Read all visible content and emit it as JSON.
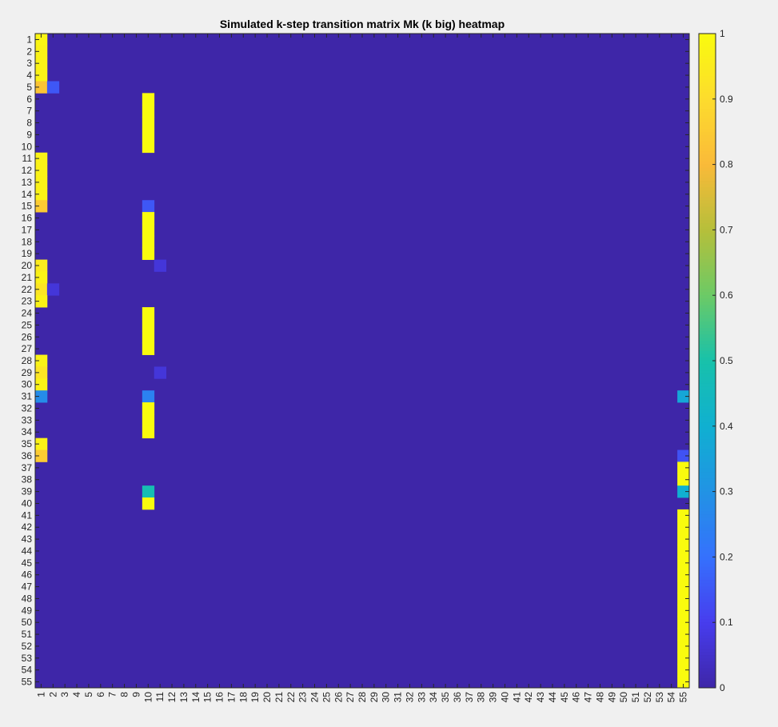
{
  "chart_data": {
    "type": "heatmap",
    "title": "Simulated k-step transition matrix Mk (k big) heatmap",
    "xlabel": "",
    "ylabel": "",
    "rows": 55,
    "cols": 55,
    "x_tick_labels": [
      "1",
      "2",
      "3",
      "4",
      "5",
      "6",
      "7",
      "8",
      "9",
      "10",
      "11",
      "12",
      "13",
      "14",
      "15",
      "16",
      "17",
      "18",
      "19",
      "20",
      "21",
      "22",
      "23",
      "24",
      "25",
      "26",
      "27",
      "28",
      "29",
      "30",
      "31",
      "32",
      "33",
      "34",
      "35",
      "36",
      "37",
      "38",
      "39",
      "40",
      "41",
      "42",
      "43",
      "44",
      "45",
      "46",
      "47",
      "48",
      "49",
      "50",
      "51",
      "52",
      "53",
      "54",
      "55"
    ],
    "y_tick_labels": [
      "1",
      "2",
      "3",
      "4",
      "5",
      "6",
      "7",
      "8",
      "9",
      "10",
      "11",
      "12",
      "13",
      "14",
      "15",
      "16",
      "17",
      "18",
      "19",
      "20",
      "21",
      "22",
      "23",
      "24",
      "25",
      "26",
      "27",
      "28",
      "29",
      "30",
      "31",
      "32",
      "33",
      "34",
      "35",
      "36",
      "37",
      "38",
      "39",
      "40",
      "41",
      "42",
      "43",
      "44",
      "45",
      "46",
      "47",
      "48",
      "49",
      "50",
      "51",
      "52",
      "53",
      "54",
      "55"
    ],
    "colorbar": {
      "min": 0,
      "max": 1,
      "ticks": [
        "0",
        "0.1",
        "0.2",
        "0.3",
        "0.4",
        "0.5",
        "0.6",
        "0.7",
        "0.8",
        "0.9",
        "1"
      ]
    },
    "background_value": 0,
    "nonzero_cells": [
      {
        "row": 1,
        "col": 1,
        "value": 0.98
      },
      {
        "row": 2,
        "col": 1,
        "value": 0.97
      },
      {
        "row": 3,
        "col": 1,
        "value": 0.97
      },
      {
        "row": 4,
        "col": 1,
        "value": 0.97
      },
      {
        "row": 5,
        "col": 1,
        "value": 0.83
      },
      {
        "row": 5,
        "col": 2,
        "value": 0.15
      },
      {
        "row": 6,
        "col": 10,
        "value": 1
      },
      {
        "row": 7,
        "col": 10,
        "value": 1
      },
      {
        "row": 8,
        "col": 10,
        "value": 1
      },
      {
        "row": 9,
        "col": 10,
        "value": 1
      },
      {
        "row": 10,
        "col": 10,
        "value": 1
      },
      {
        "row": 11,
        "col": 1,
        "value": 0.97
      },
      {
        "row": 12,
        "col": 1,
        "value": 0.97
      },
      {
        "row": 13,
        "col": 1,
        "value": 0.97
      },
      {
        "row": 14,
        "col": 1,
        "value": 0.97
      },
      {
        "row": 15,
        "col": 1,
        "value": 0.85
      },
      {
        "row": 15,
        "col": 10,
        "value": 0.15
      },
      {
        "row": 16,
        "col": 10,
        "value": 1
      },
      {
        "row": 17,
        "col": 10,
        "value": 1
      },
      {
        "row": 18,
        "col": 10,
        "value": 1
      },
      {
        "row": 19,
        "col": 10,
        "value": 1
      },
      {
        "row": 20,
        "col": 1,
        "value": 0.95
      },
      {
        "row": 20,
        "col": 11,
        "value": 0.07
      },
      {
        "row": 21,
        "col": 1,
        "value": 0.97
      },
      {
        "row": 22,
        "col": 1,
        "value": 0.93
      },
      {
        "row": 22,
        "col": 2,
        "value": 0.07
      },
      {
        "row": 23,
        "col": 1,
        "value": 0.97
      },
      {
        "row": 24,
        "col": 10,
        "value": 1
      },
      {
        "row": 25,
        "col": 10,
        "value": 1
      },
      {
        "row": 26,
        "col": 10,
        "value": 1
      },
      {
        "row": 27,
        "col": 10,
        "value": 1
      },
      {
        "row": 28,
        "col": 1,
        "value": 0.97
      },
      {
        "row": 29,
        "col": 1,
        "value": 0.93
      },
      {
        "row": 29,
        "col": 11,
        "value": 0.07
      },
      {
        "row": 30,
        "col": 1,
        "value": 0.97
      },
      {
        "row": 31,
        "col": 1,
        "value": 0.28
      },
      {
        "row": 31,
        "col": 10,
        "value": 0.25
      },
      {
        "row": 31,
        "col": 55,
        "value": 0.37
      },
      {
        "row": 32,
        "col": 10,
        "value": 1
      },
      {
        "row": 33,
        "col": 10,
        "value": 1
      },
      {
        "row": 34,
        "col": 10,
        "value": 1
      },
      {
        "row": 35,
        "col": 1,
        "value": 0.97
      },
      {
        "row": 36,
        "col": 1,
        "value": 0.85
      },
      {
        "row": 36,
        "col": 55,
        "value": 0.14
      },
      {
        "row": 37,
        "col": 55,
        "value": 1
      },
      {
        "row": 38,
        "col": 55,
        "value": 1
      },
      {
        "row": 39,
        "col": 10,
        "value": 0.48
      },
      {
        "row": 39,
        "col": 55,
        "value": 0.4
      },
      {
        "row": 40,
        "col": 10,
        "value": 1
      },
      {
        "row": 41,
        "col": 55,
        "value": 1
      },
      {
        "row": 42,
        "col": 55,
        "value": 1
      },
      {
        "row": 43,
        "col": 55,
        "value": 1
      },
      {
        "row": 44,
        "col": 55,
        "value": 1
      },
      {
        "row": 45,
        "col": 55,
        "value": 1
      },
      {
        "row": 46,
        "col": 55,
        "value": 1
      },
      {
        "row": 47,
        "col": 55,
        "value": 1
      },
      {
        "row": 48,
        "col": 55,
        "value": 1
      },
      {
        "row": 49,
        "col": 55,
        "value": 1
      },
      {
        "row": 50,
        "col": 55,
        "value": 1
      },
      {
        "row": 51,
        "col": 55,
        "value": 1
      },
      {
        "row": 52,
        "col": 55,
        "value": 1
      },
      {
        "row": 53,
        "col": 55,
        "value": 1
      },
      {
        "row": 54,
        "col": 55,
        "value": 1
      },
      {
        "row": 55,
        "col": 55,
        "value": 1
      }
    ],
    "colormap": "parula",
    "grid": false
  }
}
